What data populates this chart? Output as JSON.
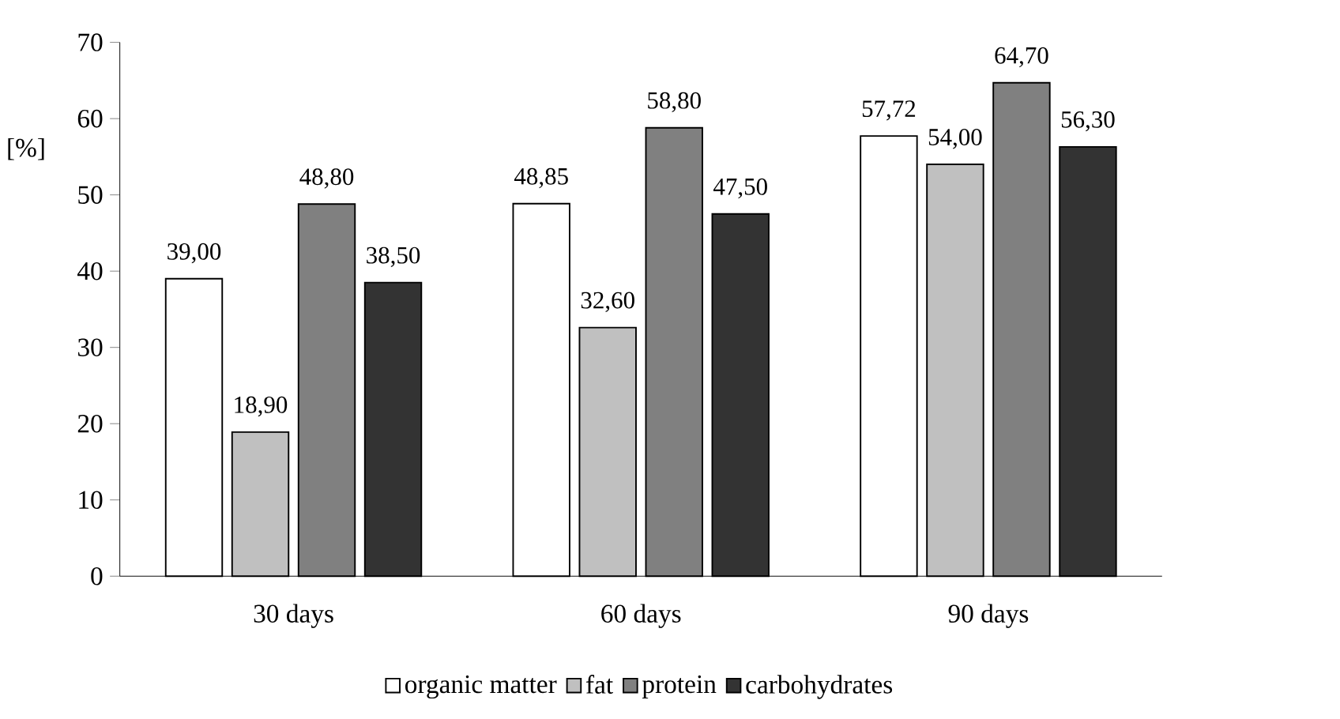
{
  "chart_data": {
    "type": "bar",
    "ylabel": "[%]",
    "categories": [
      "30 days",
      "60 days",
      "90 days"
    ],
    "series": [
      {
        "name": "organic matter",
        "color": "#ffffff",
        "values": [
          39.0,
          48.85,
          57.72
        ],
        "value_labels": [
          "39,00",
          "48,85",
          "57,72"
        ]
      },
      {
        "name": "fat",
        "color": "#c0c0c0",
        "values": [
          18.9,
          32.6,
          54.0
        ],
        "value_labels": [
          "18,90",
          "32,60",
          "54,00"
        ]
      },
      {
        "name": "protein",
        "color": "#808080",
        "values": [
          48.8,
          58.8,
          64.7
        ],
        "value_labels": [
          "48,80",
          "58,80",
          "64,70"
        ]
      },
      {
        "name": "carbohydrates",
        "color": "#333333",
        "values": [
          38.5,
          47.5,
          56.3
        ],
        "value_labels": [
          "38,50",
          "47,50",
          "56,30"
        ]
      }
    ],
    "ylim": [
      0,
      70
    ],
    "yticks": [
      0,
      10,
      20,
      30,
      40,
      50,
      60,
      70
    ],
    "grid": false,
    "legend": "bottom"
  }
}
